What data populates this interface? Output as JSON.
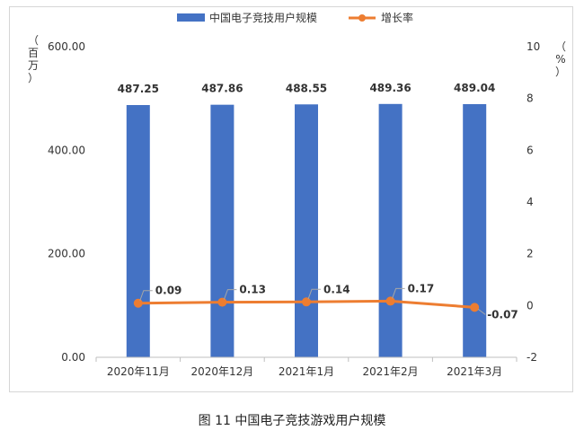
{
  "figure": {
    "caption": "图 11  中国电子竞技游戏用户规模"
  },
  "chart_data": {
    "type": "bar+line",
    "categories": [
      "2020年11月",
      "2020年12月",
      "2021年1月",
      "2021年2月",
      "2021年3月"
    ],
    "series": [
      {
        "name": "中国电子竞技用户规模",
        "type": "bar",
        "axis": "left",
        "color": "#4472c4",
        "values": [
          487.25,
          487.86,
          488.55,
          489.36,
          489.04
        ],
        "labels": [
          "487.25",
          "487.86",
          "488.55",
          "489.36",
          "489.04"
        ]
      },
      {
        "name": "增长率",
        "type": "line",
        "axis": "right",
        "color": "#ed7d31",
        "values": [
          0.09,
          0.13,
          0.14,
          0.17,
          -0.07
        ],
        "labels": [
          "0.09",
          "0.13",
          "0.14",
          "0.17",
          "-0.07"
        ]
      }
    ],
    "y_left": {
      "label": "（百万）",
      "range": [
        0,
        600
      ],
      "ticks": [
        0,
        200,
        400,
        600
      ],
      "tick_labels": [
        "0.00",
        "200.00",
        "400.00",
        "600.00"
      ]
    },
    "y_right": {
      "label": "（%）",
      "range": [
        -2,
        10
      ],
      "ticks": [
        -2,
        0,
        2,
        4,
        6,
        8,
        10
      ],
      "tick_labels": [
        "-2",
        "0",
        "2",
        "4",
        "6",
        "8",
        "10"
      ]
    },
    "legend_position": "top-center",
    "grid": false
  }
}
